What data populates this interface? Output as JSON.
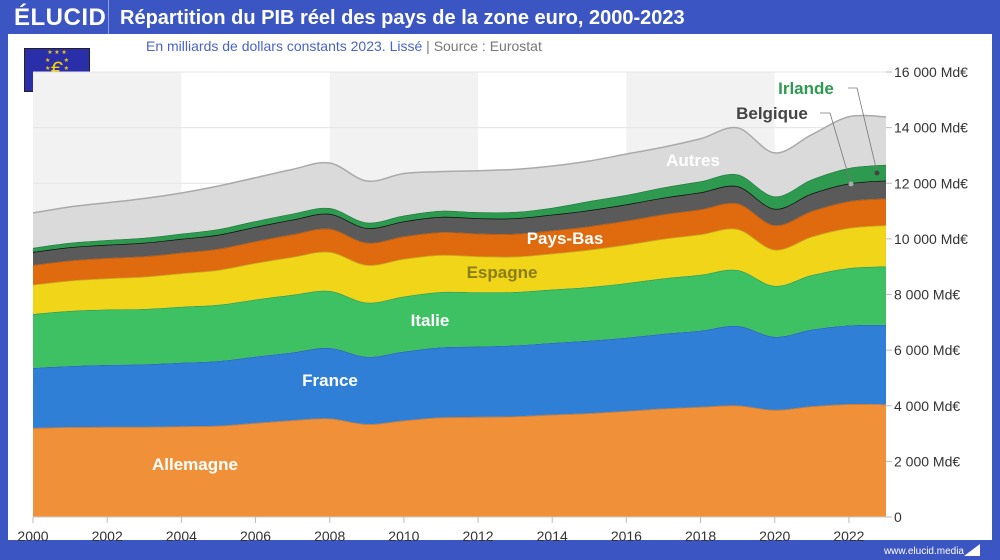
{
  "header": {
    "logo": "ÉLUCID",
    "title": "Répartition du PIB réel des pays de la zone euro, 2000-2023"
  },
  "subtitle": {
    "text": "En milliards de dollars constants 2023. Lissé",
    "separator": "|",
    "source": "Source : Eurostat"
  },
  "flag_icon": "eu-flag-euro-icon",
  "footer": {
    "url": "www.elucid.media"
  },
  "chart_data": {
    "type": "area",
    "stacked": true,
    "smoothed": true,
    "title": "Répartition du PIB réel des pays de la zone euro, 2000-2023",
    "subtitle": "En milliards de dollars constants 2023. Lissé",
    "x": [
      2000,
      2001,
      2002,
      2003,
      2004,
      2005,
      2006,
      2007,
      2008,
      2009,
      2010,
      2011,
      2012,
      2013,
      2014,
      2015,
      2016,
      2017,
      2018,
      2019,
      2020,
      2021,
      2022,
      2023
    ],
    "xticks": [
      "2000",
      "2002",
      "2004",
      "2006",
      "2008",
      "2010",
      "2012",
      "2014",
      "2016",
      "2018",
      "2020",
      "2022"
    ],
    "yticks": [
      "0",
      "2 000 Md€",
      "4 000 Md€",
      "6 000 Md€",
      "8 000 Md€",
      "10 000 Md€",
      "12 000 Md€",
      "14 000 Md€",
      "16 000 Md€"
    ],
    "ylim": [
      0,
      16000
    ],
    "xlim": [
      2000,
      2023
    ],
    "yaxis_position": "right",
    "grid": true,
    "series": [
      {
        "name": "Allemagne",
        "color": "#f0913a",
        "label_color": "#ffffff",
        "values": [
          3200,
          3230,
          3240,
          3240,
          3260,
          3280,
          3380,
          3480,
          3540,
          3340,
          3470,
          3580,
          3600,
          3620,
          3680,
          3730,
          3810,
          3900,
          3960,
          4010,
          3850,
          3980,
          4060,
          4050
        ]
      },
      {
        "name": "France",
        "color": "#2f7fd6",
        "label_color": "#ffffff",
        "values": [
          2160,
          2200,
          2230,
          2250,
          2290,
          2330,
          2390,
          2440,
          2540,
          2420,
          2480,
          2520,
          2530,
          2550,
          2580,
          2610,
          2640,
          2690,
          2740,
          2860,
          2630,
          2760,
          2830,
          2860
        ]
      },
      {
        "name": "Italie",
        "color": "#3ec163",
        "label_color": "#ffffff",
        "values": [
          1940,
          1980,
          1990,
          1990,
          2010,
          2020,
          2050,
          2070,
          2050,
          1950,
          1980,
          1990,
          1950,
          1920,
          1920,
          1930,
          1960,
          1990,
          2010,
          2010,
          1830,
          1960,
          2060,
          2100
        ]
      },
      {
        "name": "Espagne",
        "color": "#f0d519",
        "label_color": "#8a7d14",
        "values": [
          1050,
          1090,
          1120,
          1160,
          1200,
          1250,
          1310,
          1360,
          1400,
          1350,
          1350,
          1330,
          1290,
          1270,
          1290,
          1340,
          1380,
          1420,
          1450,
          1470,
          1300,
          1380,
          1440,
          1480
        ]
      },
      {
        "name": "Pays-Bas",
        "color": "#e06a0e",
        "label_color": "#ffffff",
        "values": [
          710,
          720,
          730,
          730,
          740,
          760,
          780,
          810,
          830,
          800,
          810,
          820,
          820,
          820,
          830,
          840,
          860,
          880,
          900,
          920,
          880,
          920,
          960,
          960
        ]
      },
      {
        "name": "Belgique",
        "color": "#5a5a5a",
        "label_color": "#444444",
        "values": [
          470,
          480,
          480,
          490,
          500,
          510,
          520,
          530,
          540,
          530,
          540,
          550,
          550,
          560,
          570,
          580,
          590,
          600,
          610,
          620,
          590,
          630,
          640,
          650
        ]
      },
      {
        "name": "Irlande",
        "color": "#2e9a4f",
        "label_color": "#2e9a4f",
        "values": [
          150,
          160,
          170,
          180,
          190,
          200,
          210,
          220,
          210,
          200,
          210,
          220,
          220,
          230,
          250,
          330,
          340,
          370,
          400,
          430,
          450,
          510,
          560,
          570
        ]
      },
      {
        "name": "Autres",
        "color": "#dadada",
        "label_color": "#ffffff",
        "values": [
          1250,
          1290,
          1340,
          1410,
          1460,
          1550,
          1560,
          1590,
          1620,
          1490,
          1510,
          1410,
          1490,
          1530,
          1500,
          1440,
          1470,
          1450,
          1530,
          1670,
          1560,
          1610,
          1840,
          1720
        ]
      }
    ]
  }
}
